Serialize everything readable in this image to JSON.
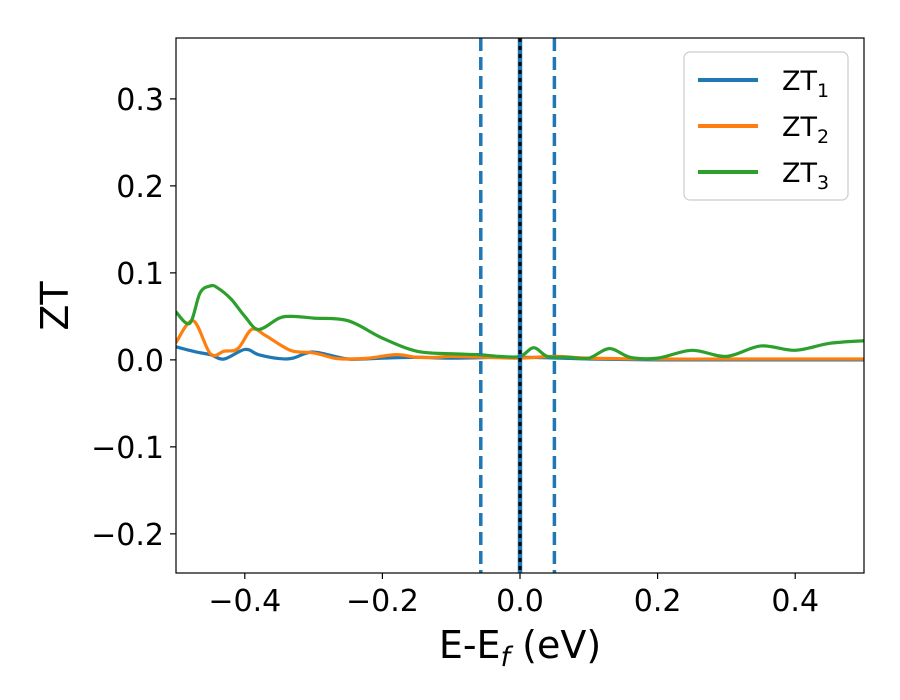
{
  "chart_data": {
    "type": "line",
    "xlabel": "E-E",
    "xlabel_sub": "f",
    "xlabel_unit": " (eV)",
    "ylabel": "ZT",
    "xlim": [
      -0.5,
      0.5
    ],
    "ylim": [
      -0.245,
      0.37
    ],
    "xticks": [
      -0.4,
      -0.2,
      0.0,
      0.2,
      0.4
    ],
    "yticks": [
      -0.2,
      -0.1,
      0.0,
      0.1,
      0.2,
      0.3
    ],
    "xtick_labels": [
      "−0.4",
      "−0.2",
      "0.0",
      "0.2",
      "0.4"
    ],
    "ytick_labels": [
      "−0.2",
      "−0.1",
      "0.0",
      "0.1",
      "0.2",
      "0.3"
    ],
    "grid": false,
    "legend_position": "top-right",
    "vlines": [
      {
        "x": -0.057,
        "style": "dashed",
        "color": "#1f77b4"
      },
      {
        "x": 0.0,
        "style": "solid",
        "color": "#1f77b4"
      },
      {
        "x": 0.0,
        "style": "dotted",
        "color": "#000000"
      },
      {
        "x": 0.05,
        "style": "dashed",
        "color": "#1f77b4"
      }
    ],
    "series": [
      {
        "name": "ZT",
        "name_sub": "1",
        "color": "#1f77b4",
        "x": [
          -0.5,
          -0.47,
          -0.45,
          -0.43,
          -0.4,
          -0.38,
          -0.35,
          -0.33,
          -0.3,
          -0.25,
          -0.2,
          -0.15,
          -0.1,
          0.0,
          0.1,
          0.2,
          0.3,
          0.4,
          0.5
        ],
        "y": [
          0.015,
          0.009,
          0.006,
          0.001,
          0.012,
          0.006,
          0.0015,
          0.002,
          0.009,
          0.001,
          0.002,
          0.003,
          0.002,
          0.003,
          0.001,
          0.0,
          0.0,
          0.0,
          0.0
        ]
      },
      {
        "name": "ZT",
        "name_sub": "2",
        "color": "#ff7f0e",
        "x": [
          -0.5,
          -0.475,
          -0.45,
          -0.43,
          -0.41,
          -0.39,
          -0.37,
          -0.35,
          -0.33,
          -0.3,
          -0.27,
          -0.25,
          -0.22,
          -0.18,
          -0.15,
          -0.12,
          -0.1,
          -0.05,
          0.0,
          0.05,
          0.1,
          0.2,
          0.3,
          0.4,
          0.5
        ],
        "y": [
          0.02,
          0.045,
          0.007,
          0.01,
          0.013,
          0.035,
          0.028,
          0.018,
          0.01,
          0.008,
          0.002,
          0.001,
          0.002,
          0.006,
          0.003,
          0.003,
          0.004,
          0.003,
          0.002,
          0.004,
          0.002,
          0.001,
          0.001,
          0.001,
          0.001
        ]
      },
      {
        "name": "ZT",
        "name_sub": "3",
        "color": "#2ca02c",
        "x": [
          -0.5,
          -0.48,
          -0.465,
          -0.45,
          -0.44,
          -0.42,
          -0.4,
          -0.38,
          -0.35,
          -0.33,
          -0.3,
          -0.25,
          -0.2,
          -0.15,
          -0.1,
          -0.06,
          -0.03,
          0.0,
          0.02,
          0.04,
          0.07,
          0.1,
          0.13,
          0.16,
          0.2,
          0.25,
          0.3,
          0.35,
          0.4,
          0.45,
          0.5
        ],
        "y": [
          0.055,
          0.042,
          0.077,
          0.085,
          0.083,
          0.07,
          0.05,
          0.035,
          0.048,
          0.05,
          0.048,
          0.045,
          0.025,
          0.01,
          0.007,
          0.006,
          0.004,
          0.004,
          0.014,
          0.004,
          0.003,
          0.002,
          0.013,
          0.003,
          0.002,
          0.011,
          0.004,
          0.016,
          0.011,
          0.019,
          0.022
        ]
      }
    ]
  }
}
